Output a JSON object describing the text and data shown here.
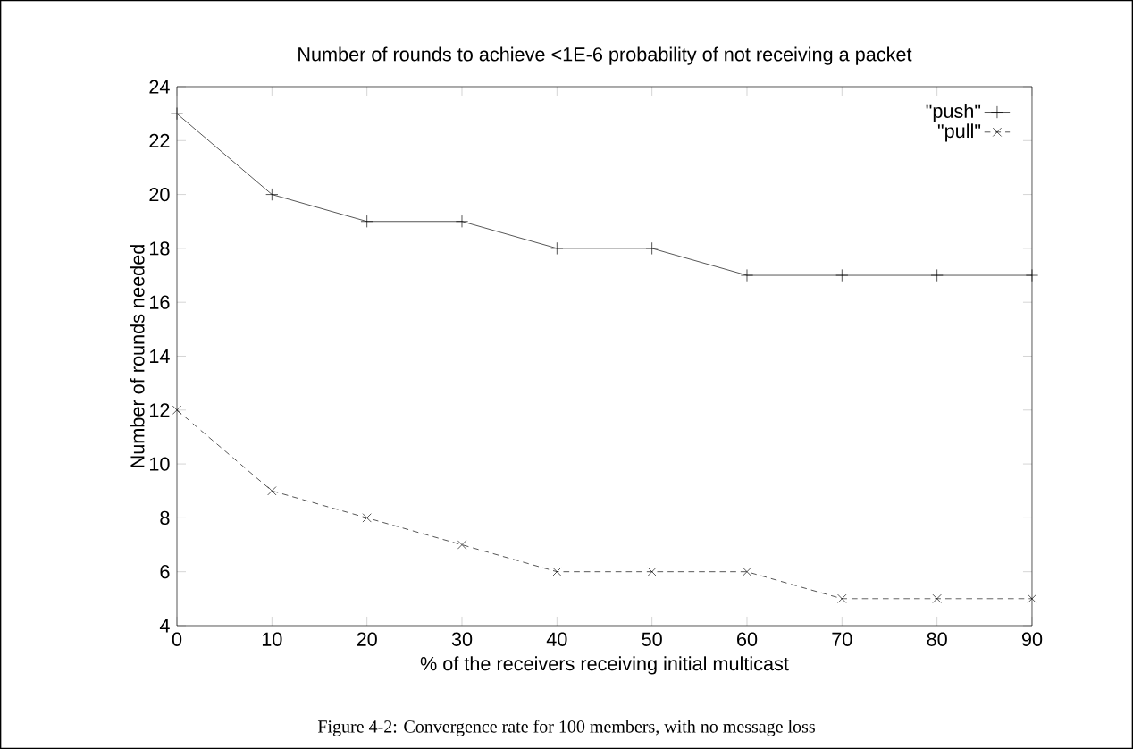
{
  "chart_data": {
    "type": "line",
    "title": "Number of rounds to achieve <1E-6 probability of not receiving a packet",
    "xlabel": "% of the receivers receiving initial multicast",
    "ylabel": "Number of rounds needed",
    "x": [
      0,
      10,
      20,
      30,
      40,
      50,
      60,
      70,
      80,
      90
    ],
    "series": [
      {
        "name": "\"push\"",
        "color": "#000000",
        "marker": "plus",
        "line_style": "solid",
        "values": [
          23,
          20,
          19,
          19,
          18,
          18,
          17,
          17,
          17,
          17
        ]
      },
      {
        "name": "\"pull\"",
        "color": "#000000",
        "marker": "cross",
        "line_style": "dashed",
        "values": [
          12,
          9,
          8,
          7,
          6,
          6,
          6,
          5,
          5,
          5
        ]
      }
    ],
    "xlim": [
      0,
      90
    ],
    "xticks": [
      0,
      10,
      20,
      30,
      40,
      50,
      60,
      70,
      80,
      90
    ],
    "ylim": [
      4,
      24
    ],
    "yticks": [
      4,
      6,
      8,
      10,
      12,
      14,
      16,
      18,
      20,
      22,
      24
    ],
    "grid": false,
    "legend": "top right",
    "annotations": [
      "Figure 4-2: Convergence rate for 100 members, with no message loss"
    ]
  }
}
